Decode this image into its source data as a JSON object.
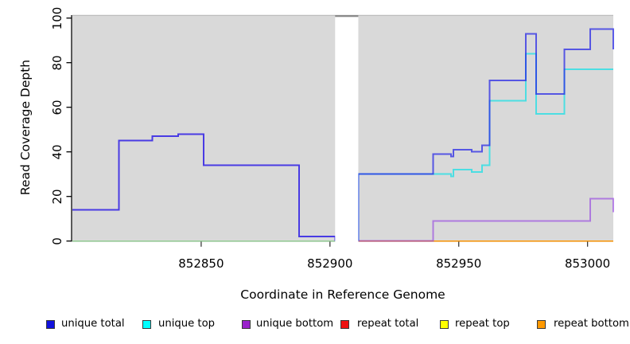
{
  "chart_data": {
    "type": "line",
    "subtype": "step",
    "title": "",
    "xlabel": "Coordinate in Reference Genome",
    "ylabel": "Read Coverage Depth",
    "xlim": [
      852800,
      853010
    ],
    "ylim": [
      0,
      100
    ],
    "x_ticks": [
      852850,
      852900,
      852950,
      853000
    ],
    "y_ticks": [
      0,
      20,
      40,
      60,
      80,
      100
    ],
    "grid": "off",
    "plot_bg": "#d9d9d9",
    "gap_region": {
      "x_start": 852902,
      "x_end": 852911,
      "fill": "#ffffff",
      "top_strip_color": "#8a8a8a"
    },
    "series": [
      {
        "name": "repeat total",
        "legend_color": "#ee1111",
        "stroke": "rgba(238,17,17,0.75)",
        "width": 1.6,
        "segments": [
          [
            [
              852800,
              0
            ],
            [
              852902,
              0
            ]
          ],
          [
            [
              852911,
              0
            ],
            [
              853010,
              0
            ]
          ]
        ]
      },
      {
        "name": "repeat top",
        "legend_color": "#ffff00",
        "stroke": "rgba(255,255,0,0.75)",
        "width": 1.6,
        "segments": [
          [
            [
              852800,
              0
            ],
            [
              852902,
              0
            ]
          ],
          [
            [
              852911,
              0
            ],
            [
              853010,
              0
            ]
          ]
        ]
      },
      {
        "name": "repeat bottom",
        "legend_color": "#ff9900",
        "stroke": "rgba(255,148,10,0.9)",
        "width": 1.8,
        "segments": [
          [
            [
              852800,
              0
            ],
            [
              852902,
              0
            ]
          ],
          [
            [
              852911,
              0
            ],
            [
              853010,
              0
            ]
          ]
        ]
      },
      {
        "name": "baseline-overlap-left",
        "artifact": true,
        "stroke": "#97d098",
        "width": 1.8,
        "segments": [
          [
            [
              852800,
              0
            ],
            [
              852902,
              0
            ]
          ]
        ]
      },
      {
        "name": "unique bottom",
        "legend_color": "#9a22cc",
        "stroke": "rgba(138,43,226,0.55)",
        "width": 2,
        "segments": [
          [
            [
              852800,
              14
            ],
            [
              852818,
              45
            ],
            [
              852831,
              47
            ],
            [
              852841,
              48
            ],
            [
              852851,
              34
            ],
            [
              852888,
              2
            ],
            [
              852902,
              0
            ]
          ],
          [
            [
              852911,
              0
            ],
            [
              852940,
              9
            ],
            [
              853001,
              19
            ],
            [
              853010,
              13
            ]
          ]
        ]
      },
      {
        "name": "unique top",
        "legend_color": "#00ffff",
        "stroke": "rgba(40,222,228,0.8)",
        "width": 2,
        "segments": [
          [
            [
              852911,
              0
            ],
            [
              852911,
              30
            ],
            [
              852947,
              29
            ],
            [
              852948,
              32
            ],
            [
              852955,
              31
            ],
            [
              852959,
              34
            ],
            [
              852962,
              63
            ],
            [
              852976,
              84
            ],
            [
              852980,
              57
            ],
            [
              852991,
              77
            ],
            [
              853010,
              77
            ]
          ]
        ]
      },
      {
        "name": "unique total",
        "legend_color": "#1111dd",
        "stroke": "rgba(35,35,230,0.72)",
        "width": 2,
        "segments": [
          [
            [
              852800,
              14
            ],
            [
              852818,
              45
            ],
            [
              852831,
              47
            ],
            [
              852841,
              48
            ],
            [
              852851,
              34
            ],
            [
              852888,
              2
            ],
            [
              852902,
              0
            ]
          ],
          [
            [
              852911,
              0
            ],
            [
              852911,
              30
            ],
            [
              852940,
              39
            ],
            [
              852947,
              38
            ],
            [
              852948,
              41
            ],
            [
              852955,
              40
            ],
            [
              852959,
              43
            ],
            [
              852962,
              72
            ],
            [
              852976,
              93
            ],
            [
              852980,
              66
            ],
            [
              852991,
              86
            ],
            [
              853001,
              95
            ],
            [
              853010,
              86
            ]
          ]
        ]
      }
    ],
    "legend": [
      {
        "label": "unique total",
        "color": "#1111dd"
      },
      {
        "label": "unique top",
        "color": "#00ffff"
      },
      {
        "label": "unique bottom",
        "color": "#9a22cc"
      },
      {
        "label": "repeat total",
        "color": "#ee1111"
      },
      {
        "label": "repeat top",
        "color": "#ffff00"
      },
      {
        "label": "repeat bottom",
        "color": "#ff9900"
      }
    ],
    "legend_position": "bottom"
  }
}
